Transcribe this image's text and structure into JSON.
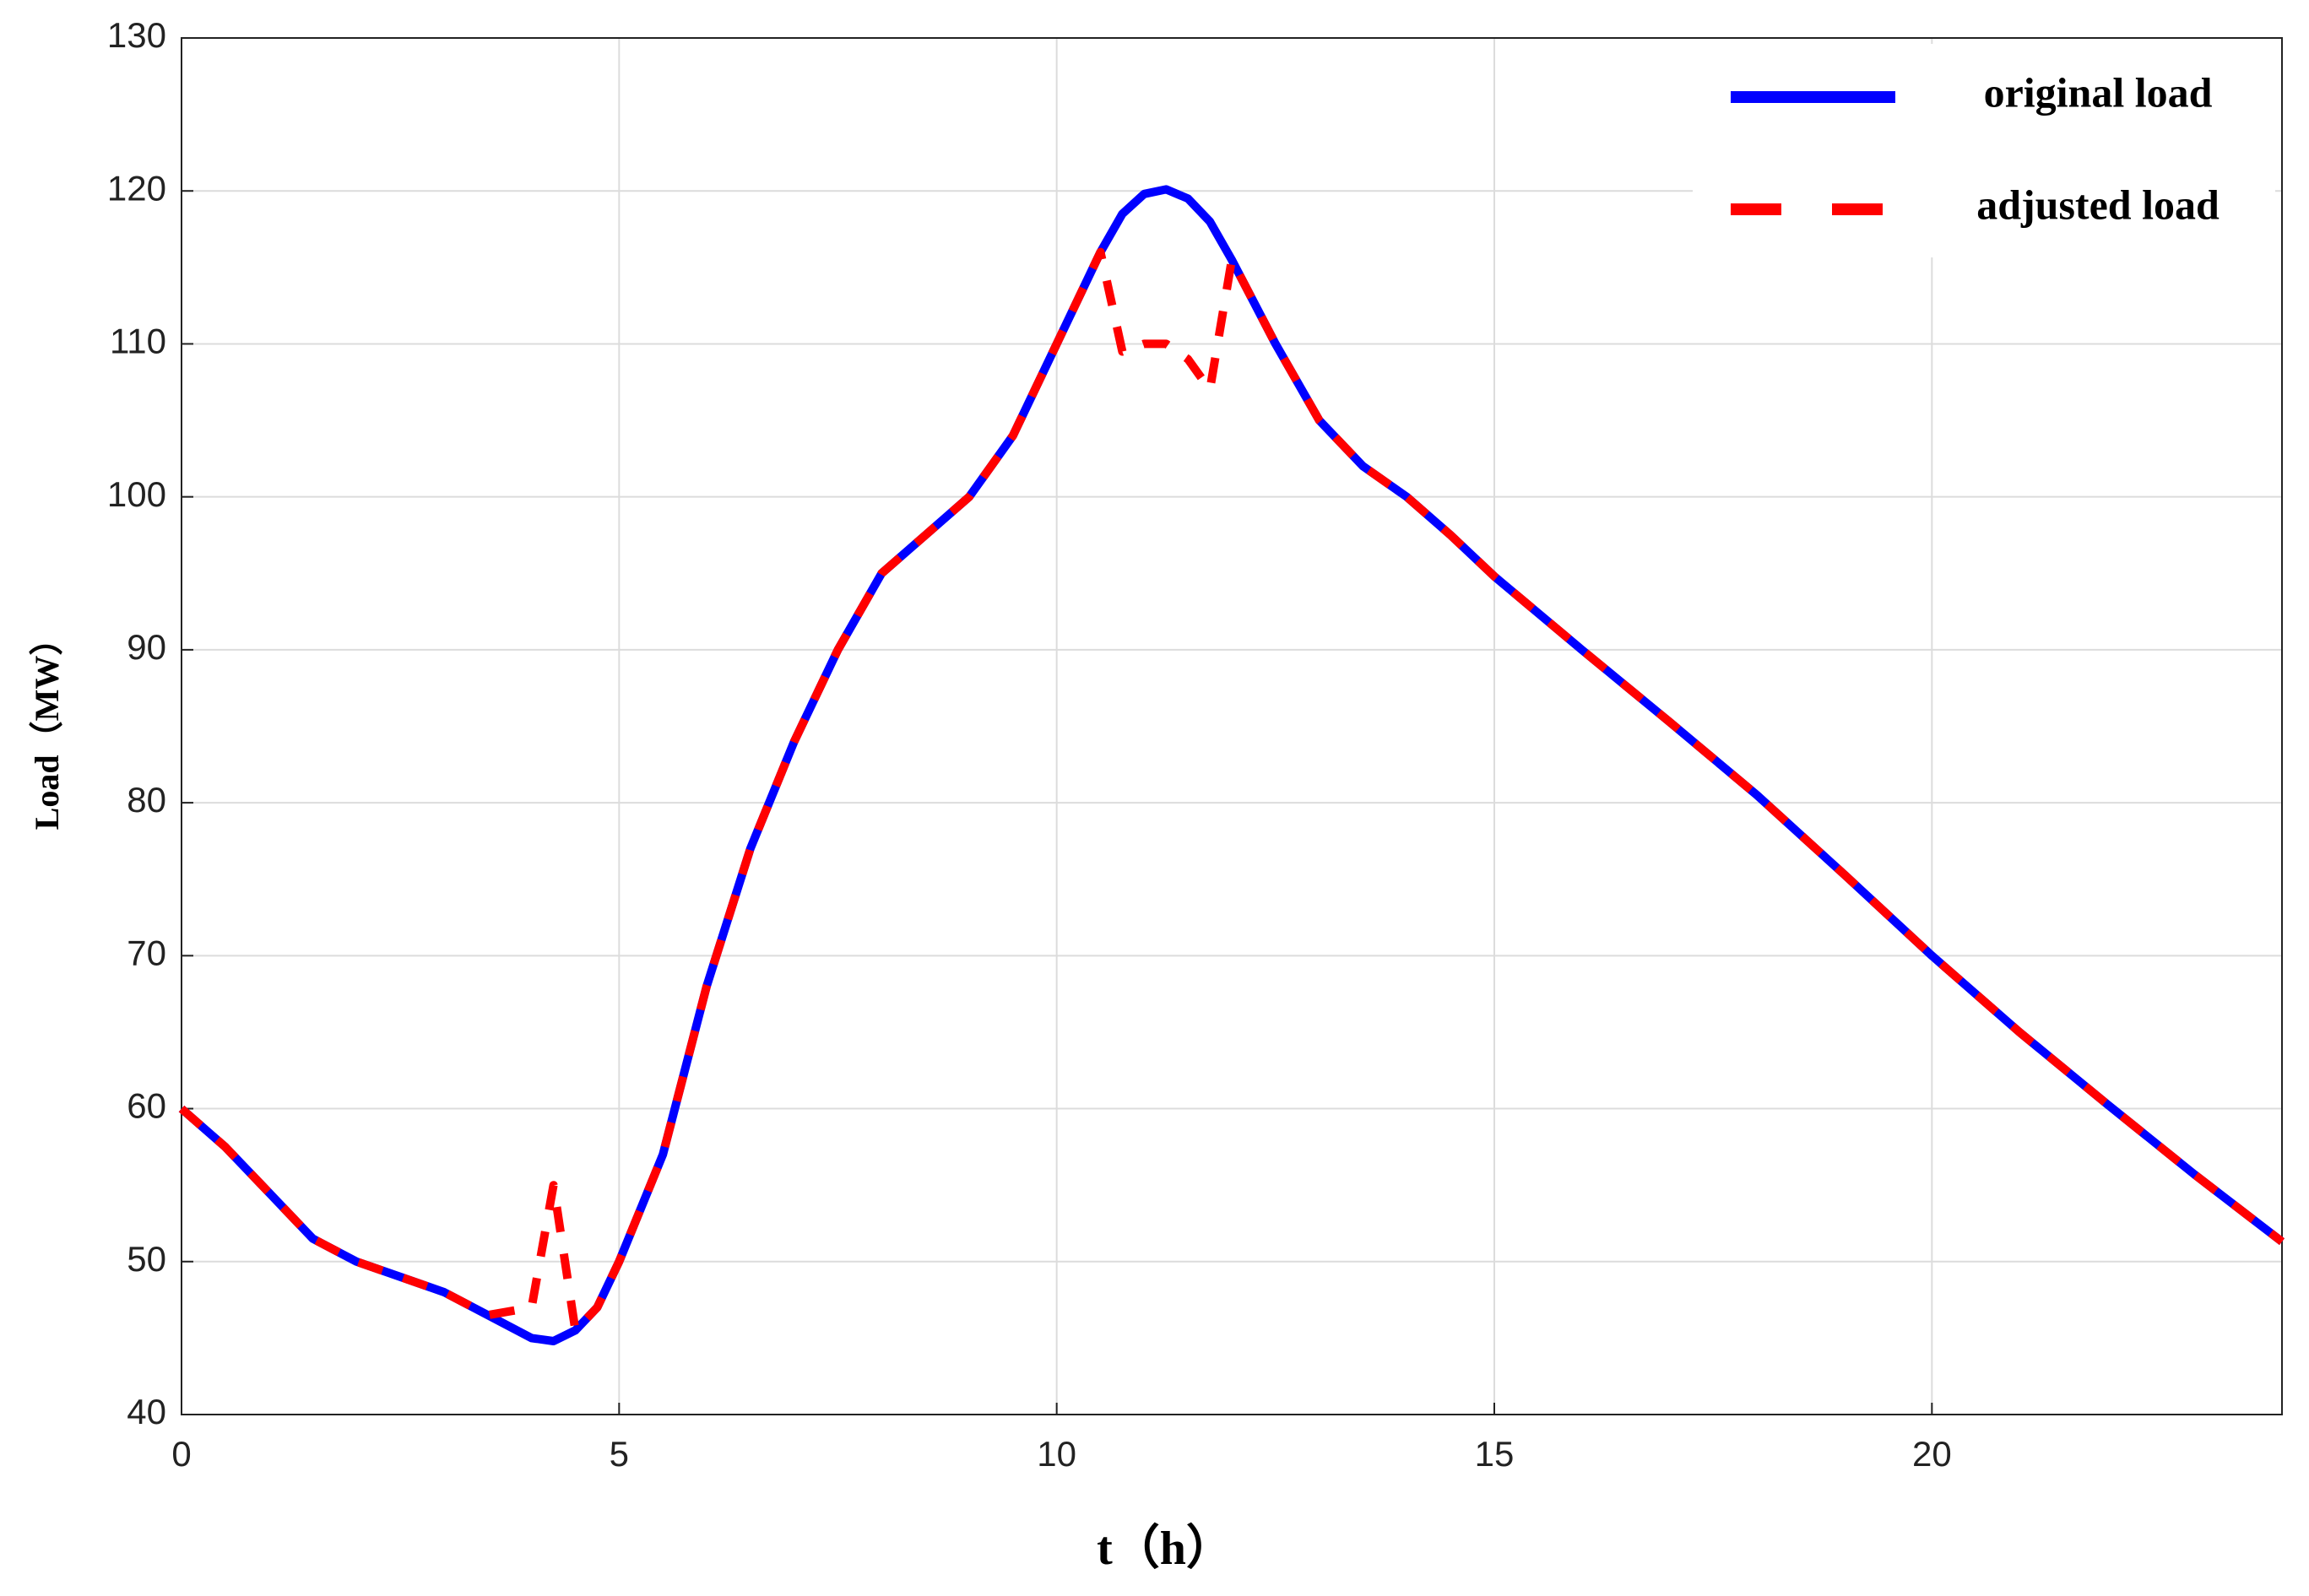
{
  "chart_data": {
    "type": "line",
    "xlabel": "t（h）",
    "ylabel": "Load（MW）",
    "x": [
      0,
      0.5,
      1,
      1.5,
      2,
      2.5,
      3,
      3.5,
      4,
      4.25,
      4.5,
      4.75,
      5,
      5.5,
      6,
      6.5,
      7,
      7.5,
      8,
      8.5,
      9,
      9.5,
      10,
      10.5,
      10.75,
      11,
      11.25,
      11.5,
      11.75,
      12,
      12.5,
      13,
      13.5,
      14,
      14.5,
      15,
      16,
      17,
      18,
      19,
      20,
      21,
      22,
      23,
      24
    ],
    "series": [
      {
        "name": "original load",
        "color": "#0000ff",
        "dashed": false,
        "values": [
          60,
          57.5,
          54.5,
          51.5,
          50,
          49,
          48,
          46.5,
          45,
          44.8,
          45.5,
          47,
          50,
          57,
          68,
          77,
          84,
          90,
          95,
          97.5,
          100,
          104,
          110,
          116,
          118.5,
          119.8,
          120.1,
          119.5,
          118,
          115.5,
          110,
          105,
          102,
          100,
          97.5,
          94.8,
          90,
          85.3,
          80.5,
          75.3,
          70,
          65,
          60.3,
          55.7,
          51.3
        ]
      },
      {
        "name": "adjusted load",
        "color": "#ff0000",
        "dashed": true,
        "values": [
          60,
          57.5,
          54.5,
          51.5,
          50,
          49,
          48,
          46.5,
          47,
          55,
          45.5,
          47,
          50,
          57,
          68,
          77,
          84,
          90,
          95,
          97.5,
          100,
          104,
          110,
          116,
          109.5,
          110,
          110,
          109,
          107,
          115.5,
          110,
          105,
          102,
          100,
          97.5,
          94.8,
          90,
          85.3,
          80.5,
          75.3,
          70,
          65,
          60.3,
          55.7,
          51.3
        ]
      }
    ],
    "xlim": [
      0,
      24
    ],
    "xticks": [
      0,
      5,
      10,
      15,
      20
    ],
    "ylim": [
      40,
      130
    ],
    "yticks": [
      40,
      50,
      60,
      70,
      80,
      90,
      100,
      110,
      120,
      130
    ],
    "grid": true,
    "legend": "upper right"
  }
}
